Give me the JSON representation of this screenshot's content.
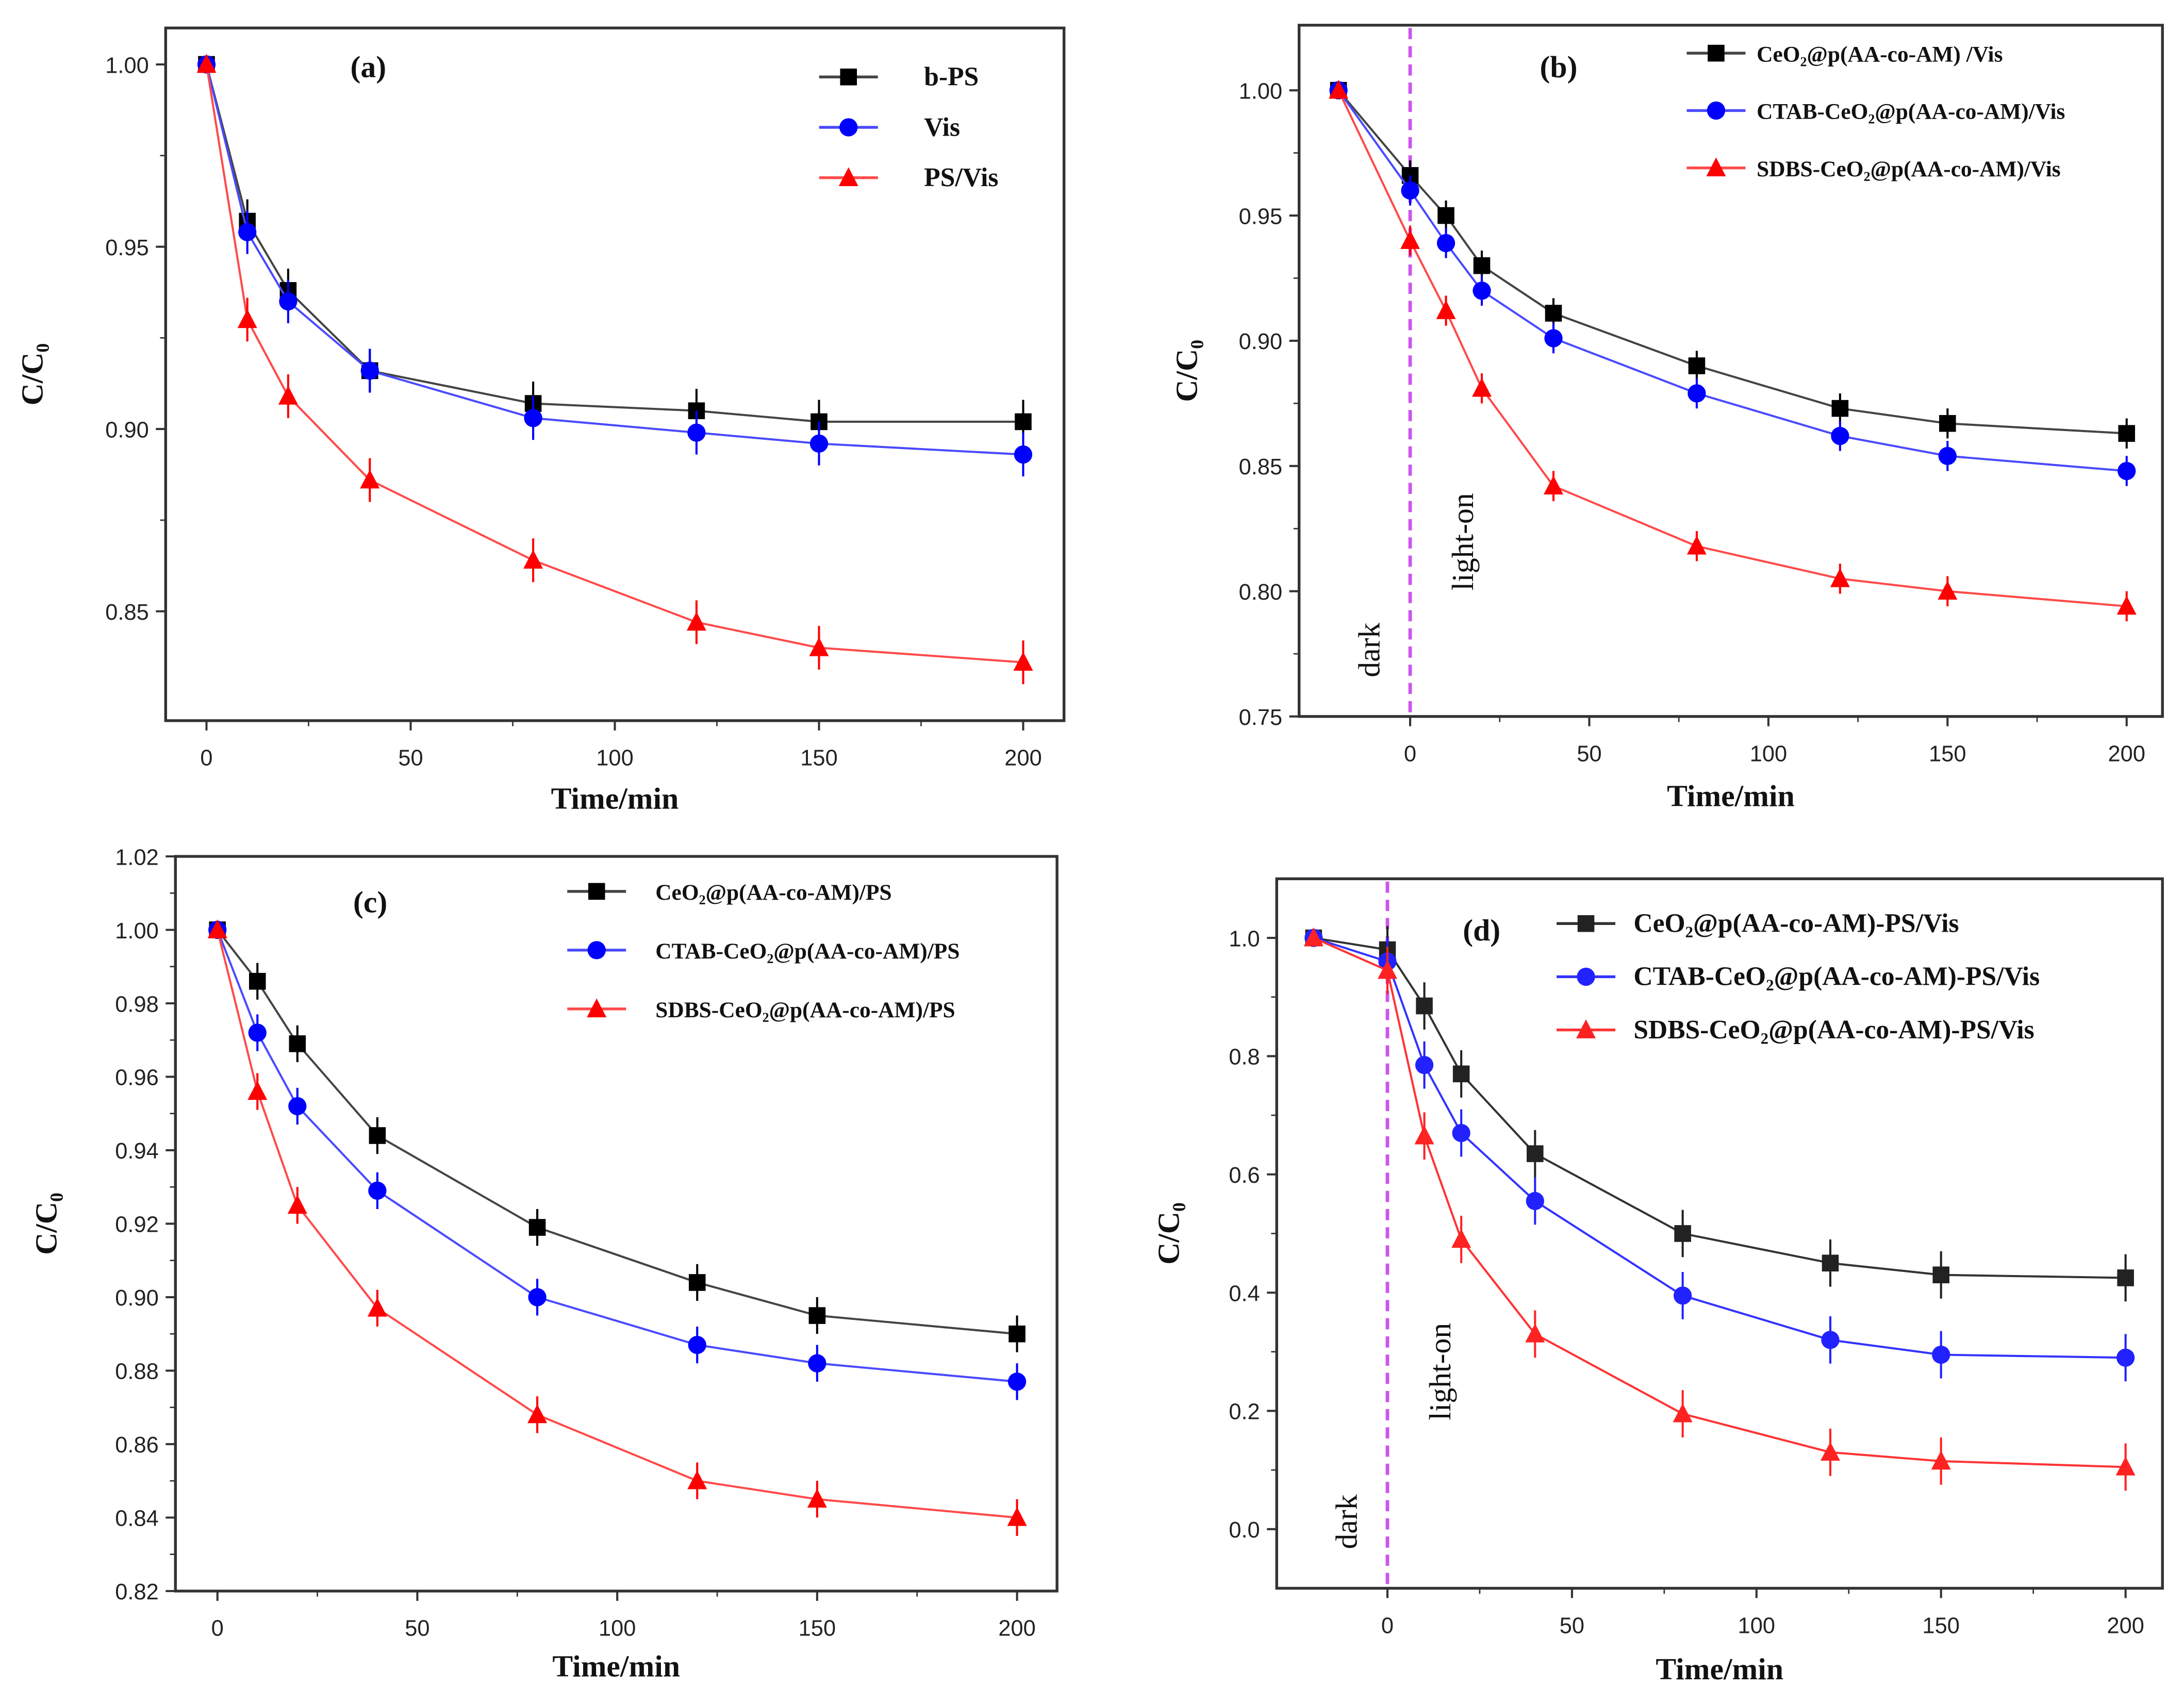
{
  "chart_data": [
    {
      "type": "line",
      "panel_label": "(a)",
      "xlabel": "Time/min",
      "ylabel": "C/C₀",
      "xlim": [
        -10,
        210
      ],
      "ylim": [
        0.82,
        1.01
      ],
      "xticks": [
        0,
        50,
        100,
        150,
        200
      ],
      "yticks": [
        0.85,
        0.9,
        0.95,
        1.0
      ],
      "ytick_decimals": 2,
      "legend_position": "top-right",
      "x": [
        0,
        10,
        20,
        40,
        80,
        120,
        150,
        200
      ],
      "yerr": 0.006,
      "series": [
        {
          "name": "b-PS",
          "color": "#000000",
          "line": "#444444",
          "marker": "square",
          "values": [
            1.0,
            0.957,
            0.938,
            0.916,
            0.907,
            0.905,
            0.902,
            0.902
          ]
        },
        {
          "name": "Vis",
          "color": "#0000ff",
          "line": "#4a4aff",
          "marker": "circle",
          "values": [
            1.0,
            0.954,
            0.935,
            0.916,
            0.903,
            0.899,
            0.896,
            0.893
          ]
        },
        {
          "name": "PS/Vis",
          "color": "#ff0000",
          "line": "#ff4a4a",
          "marker": "triangle",
          "values": [
            1.0,
            0.93,
            0.909,
            0.886,
            0.864,
            0.847,
            0.84,
            0.836
          ]
        }
      ]
    },
    {
      "type": "line",
      "panel_label": "(b)",
      "xlabel": "Time/min",
      "ylabel": "C/C₀",
      "xlim": [
        -31,
        210
      ],
      "ylim": [
        0.75,
        1.026
      ],
      "xticks": [
        0,
        50,
        100,
        150,
        200
      ],
      "yticks": [
        0.75,
        0.8,
        0.85,
        0.9,
        0.95,
        1.0
      ],
      "ytick_decimals": 2,
      "legend_position": "top-right",
      "annotations": {
        "divider_x": 0,
        "dark": "dark",
        "light_on": "light-on",
        "divider_color": "#cc55ee"
      },
      "x": [
        -20,
        0,
        10,
        20,
        40,
        80,
        120,
        150,
        200
      ],
      "yerr": 0.006,
      "series": [
        {
          "name": "CeO₂@p(AA-co-AM) /Vis",
          "color": "#000000",
          "line": "#444444",
          "marker": "square",
          "values": [
            1.0,
            0.966,
            0.95,
            0.93,
            0.911,
            0.89,
            0.873,
            0.867,
            0.863
          ]
        },
        {
          "name": "CTAB-CeO₂@p(AA-co-AM)/Vis",
          "color": "#0000ff",
          "line": "#4a4aff",
          "marker": "circle",
          "values": [
            1.0,
            0.96,
            0.939,
            0.92,
            0.901,
            0.879,
            0.862,
            0.854,
            0.848
          ]
        },
        {
          "name": "SDBS-CeO₂@p(AA-co-AM)/Vis",
          "color": "#ff0000",
          "line": "#ff4a4a",
          "marker": "triangle",
          "values": [
            1.0,
            0.94,
            0.912,
            0.881,
            0.842,
            0.818,
            0.805,
            0.8,
            0.794
          ]
        }
      ]
    },
    {
      "type": "line",
      "panel_label": "(c)",
      "xlabel": "Time/min",
      "ylabel": "C/C₀",
      "xlim": [
        -10.5,
        210
      ],
      "ylim": [
        0.82,
        1.02
      ],
      "xticks": [
        0,
        50,
        100,
        150,
        200
      ],
      "yticks": [
        0.82,
        0.84,
        0.86,
        0.88,
        0.9,
        0.92,
        0.94,
        0.96,
        0.98,
        1.0,
        1.02
      ],
      "ytick_decimals": 2,
      "legend_position": "top-right",
      "x": [
        0,
        10,
        20,
        40,
        80,
        120,
        150,
        200
      ],
      "yerr": 0.005,
      "series": [
        {
          "name": "CeO₂@p(AA-co-AM)/PS",
          "color": "#000000",
          "line": "#444444",
          "marker": "square",
          "values": [
            1.0,
            0.986,
            0.969,
            0.944,
            0.919,
            0.904,
            0.895,
            0.89
          ]
        },
        {
          "name": "CTAB-CeO₂@p(AA-co-AM)/PS",
          "color": "#0000ff",
          "line": "#4a4aff",
          "marker": "circle",
          "values": [
            1.0,
            0.972,
            0.952,
            0.929,
            0.9,
            0.887,
            0.882,
            0.877
          ]
        },
        {
          "name": "SDBS-CeO₂@p(AA-co-AM)/PS",
          "color": "#ff0000",
          "line": "#ff4a4a",
          "marker": "triangle",
          "values": [
            1.0,
            0.956,
            0.925,
            0.897,
            0.868,
            0.85,
            0.845,
            0.84
          ]
        }
      ]
    },
    {
      "type": "line",
      "panel_label": "(d)",
      "xlabel": "Time/min",
      "ylabel": "C/C₀",
      "xlim": [
        -30,
        210
      ],
      "ylim": [
        -0.1,
        1.1
      ],
      "xticks": [
        0,
        50,
        100,
        150,
        200
      ],
      "yticks": [
        0.0,
        0.2,
        0.4,
        0.6,
        0.8,
        1.0
      ],
      "ytick_decimals": 1,
      "legend_position": "top-right",
      "annotations": {
        "divider_x": 0,
        "dark": "dark",
        "light_on": "light-on",
        "divider_color": "#cc55ee"
      },
      "x": [
        -20,
        0,
        10,
        20,
        40,
        80,
        120,
        150,
        200
      ],
      "yerr": 0.04,
      "series": [
        {
          "name": "CeO₂@p(AA-co-AM)-PS/Vis",
          "color": "#222222",
          "line": "#333333",
          "marker": "square",
          "values": [
            1.0,
            0.98,
            0.885,
            0.77,
            0.635,
            0.5,
            0.45,
            0.43,
            0.425
          ]
        },
        {
          "name": "CTAB-CeO₂@p(AA-co-AM)-PS/Vis",
          "color": "#2222ff",
          "line": "#3333ff",
          "marker": "circle",
          "values": [
            1.0,
            0.96,
            0.785,
            0.67,
            0.555,
            0.395,
            0.32,
            0.295,
            0.29
          ]
        },
        {
          "name": "SDBS-CeO₂@p(AA-co-AM)-PS/Vis",
          "color": "#ff2222",
          "line": "#ff3333",
          "marker": "triangle",
          "values": [
            1.0,
            0.945,
            0.665,
            0.49,
            0.33,
            0.195,
            0.13,
            0.115,
            0.105
          ]
        }
      ]
    }
  ]
}
